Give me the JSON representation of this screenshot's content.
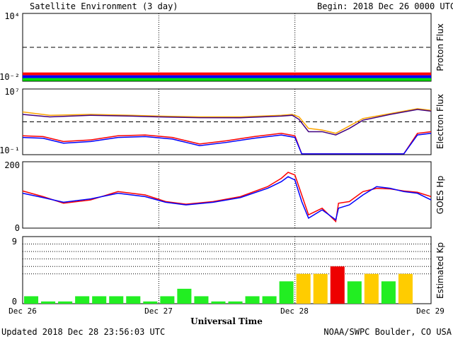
{
  "header": {
    "title": "Satellite Environment (3 day)",
    "begin": "Begin:  2018 Dec 26 0000 UTC"
  },
  "footer": {
    "updated": "Updated 2018 Dec 28 23:56:03 UTC",
    "credit": "NOAA/SWPC Boulder, CO USA"
  },
  "colors": {
    "red": "#ff0000",
    "blue": "#0000ff",
    "green": "#00e000",
    "orange": "#ffa500",
    "purple": "#400080",
    "kp_green": "#22ee22",
    "kp_yellow": "#ffcc00",
    "kp_red": "#ee0000"
  },
  "chart_data": [
    {
      "type": "line",
      "panel": "proton",
      "ylabel": "Proton Flux",
      "yscale": "log",
      "ylim_log10": [
        -2,
        4
      ],
      "ytick_labels": [
        "10⁴",
        "10⁻²"
      ],
      "threshold_log10": 1,
      "x_days": [
        0,
        3
      ],
      "series": [
        {
          "color": "red",
          "log10": [
            -1.35,
            -1.35,
            -1.35,
            -1.35,
            -1.35,
            -1.35,
            -1.35,
            -1.35,
            -1.35
          ]
        },
        {
          "color": "blue",
          "log10": [
            -1.6,
            -1.6,
            -1.6,
            -1.6,
            -1.6,
            -1.6,
            -1.6,
            -1.6,
            -1.6
          ]
        },
        {
          "color": "green",
          "log10": [
            -1.85,
            -1.85,
            -1.85,
            -1.85,
            -1.85,
            -1.85,
            -1.85,
            -1.85,
            -1.85
          ]
        }
      ]
    },
    {
      "type": "line",
      "panel": "electron",
      "ylabel": "Electron Flux",
      "yscale": "log",
      "ylim_log10": [
        -1,
        7
      ],
      "ytick_labels": [
        "10⁷",
        "10⁻¹"
      ],
      "threshold_log10": 3,
      "x_days": [
        0,
        3
      ],
      "series": [
        {
          "color": "orange",
          "x": [
            0,
            0.2,
            0.5,
            0.8,
            1.0,
            1.3,
            1.6,
            1.9,
            1.98,
            2.03,
            2.1,
            2.2,
            2.3,
            2.4,
            2.5,
            2.7,
            2.9,
            3.0
          ],
          "log10": [
            4.2,
            3.8,
            3.9,
            3.8,
            3.7,
            3.6,
            3.6,
            3.8,
            3.9,
            3.6,
            2.2,
            2.0,
            1.6,
            2.5,
            3.4,
            4.0,
            4.6,
            4.4
          ]
        },
        {
          "color": "purple",
          "x": [
            0,
            0.2,
            0.5,
            0.8,
            1.0,
            1.3,
            1.6,
            1.9,
            1.98,
            2.03,
            2.1,
            2.2,
            2.3,
            2.4,
            2.5,
            2.7,
            2.9,
            3.0
          ],
          "log10": [
            3.9,
            3.6,
            3.8,
            3.7,
            3.6,
            3.5,
            3.5,
            3.7,
            3.8,
            3.3,
            1.8,
            1.8,
            1.4,
            2.2,
            3.2,
            3.9,
            4.5,
            4.3
          ]
        },
        {
          "color": "red",
          "x": [
            0,
            0.15,
            0.3,
            0.5,
            0.7,
            0.9,
            1.1,
            1.2,
            1.3,
            1.5,
            1.7,
            1.9,
            2.0,
            2.05,
            2.3,
            2.6,
            2.8,
            2.9,
            3.0
          ],
          "log10": [
            1.3,
            1.2,
            0.6,
            0.8,
            1.3,
            1.4,
            1.1,
            0.7,
            0.3,
            0.7,
            1.2,
            1.6,
            1.3,
            -0.9,
            -0.9,
            -0.9,
            -0.9,
            1.6,
            1.8
          ]
        },
        {
          "color": "blue",
          "x": [
            0,
            0.15,
            0.3,
            0.5,
            0.7,
            0.9,
            1.1,
            1.2,
            1.3,
            1.5,
            1.7,
            1.9,
            2.0,
            2.05,
            2.3,
            2.6,
            2.8,
            2.9,
            3.0
          ],
          "log10": [
            1.1,
            1.0,
            0.4,
            0.6,
            1.1,
            1.2,
            0.9,
            0.5,
            0.1,
            0.5,
            1.0,
            1.4,
            1.1,
            -0.9,
            -0.9,
            -0.9,
            -0.9,
            1.4,
            1.6
          ]
        }
      ]
    },
    {
      "type": "line",
      "panel": "goes_hp",
      "ylabel": "GOES Hp",
      "ylim": [
        0,
        200
      ],
      "ytick_labels": [
        "200",
        "0"
      ],
      "x_days": [
        0,
        3
      ],
      "series": [
        {
          "color": "red",
          "x": [
            0,
            0.15,
            0.3,
            0.5,
            0.7,
            0.9,
            1.05,
            1.2,
            1.4,
            1.6,
            1.8,
            1.9,
            1.95,
            2.0,
            2.05,
            2.1,
            2.2,
            2.3,
            2.32,
            2.4,
            2.5,
            2.6,
            2.7,
            2.8,
            2.9,
            3.0
          ],
          "values": [
            112,
            95,
            75,
            85,
            110,
            100,
            80,
            72,
            80,
            95,
            125,
            150,
            168,
            160,
            100,
            40,
            60,
            20,
            75,
            80,
            110,
            120,
            118,
            112,
            108,
            95
          ]
        },
        {
          "color": "blue",
          "x": [
            0,
            0.15,
            0.3,
            0.5,
            0.7,
            0.9,
            1.05,
            1.2,
            1.4,
            1.6,
            1.8,
            1.9,
            1.95,
            2.0,
            2.05,
            2.1,
            2.2,
            2.3,
            2.32,
            2.4,
            2.5,
            2.6,
            2.7,
            2.8,
            2.9,
            3.0
          ],
          "values": [
            105,
            92,
            78,
            88,
            105,
            95,
            78,
            70,
            78,
            92,
            120,
            140,
            155,
            145,
            80,
            30,
            55,
            25,
            60,
            70,
            100,
            125,
            120,
            110,
            105,
            85
          ]
        }
      ]
    },
    {
      "type": "bar",
      "panel": "kp",
      "ylabel": "Estimated Kp",
      "ylim": [
        0,
        9
      ],
      "ytick_labels": [
        "9",
        "0"
      ],
      "values": [
        1,
        0.3,
        0.3,
        1,
        1,
        1,
        1,
        0.3,
        1,
        2,
        1,
        0.3,
        0.3,
        1,
        1,
        3,
        4,
        4,
        5,
        3,
        4,
        3,
        4
      ],
      "colors": [
        "kp_green",
        "kp_green",
        "kp_green",
        "kp_green",
        "kp_green",
        "kp_green",
        "kp_green",
        "kp_green",
        "kp_green",
        "kp_green",
        "kp_green",
        "kp_green",
        "kp_green",
        "kp_green",
        "kp_green",
        "kp_green",
        "kp_yellow",
        "kp_yellow",
        "kp_red",
        "kp_green",
        "kp_yellow",
        "kp_green",
        "kp_yellow"
      ],
      "gridlines": [
        4,
        5,
        6,
        7,
        8
      ]
    }
  ],
  "x_axis": {
    "ticks": [
      "Dec 26",
      "Dec 27",
      "Dec 28",
      "Dec 29"
    ],
    "label": "Universal Time"
  }
}
